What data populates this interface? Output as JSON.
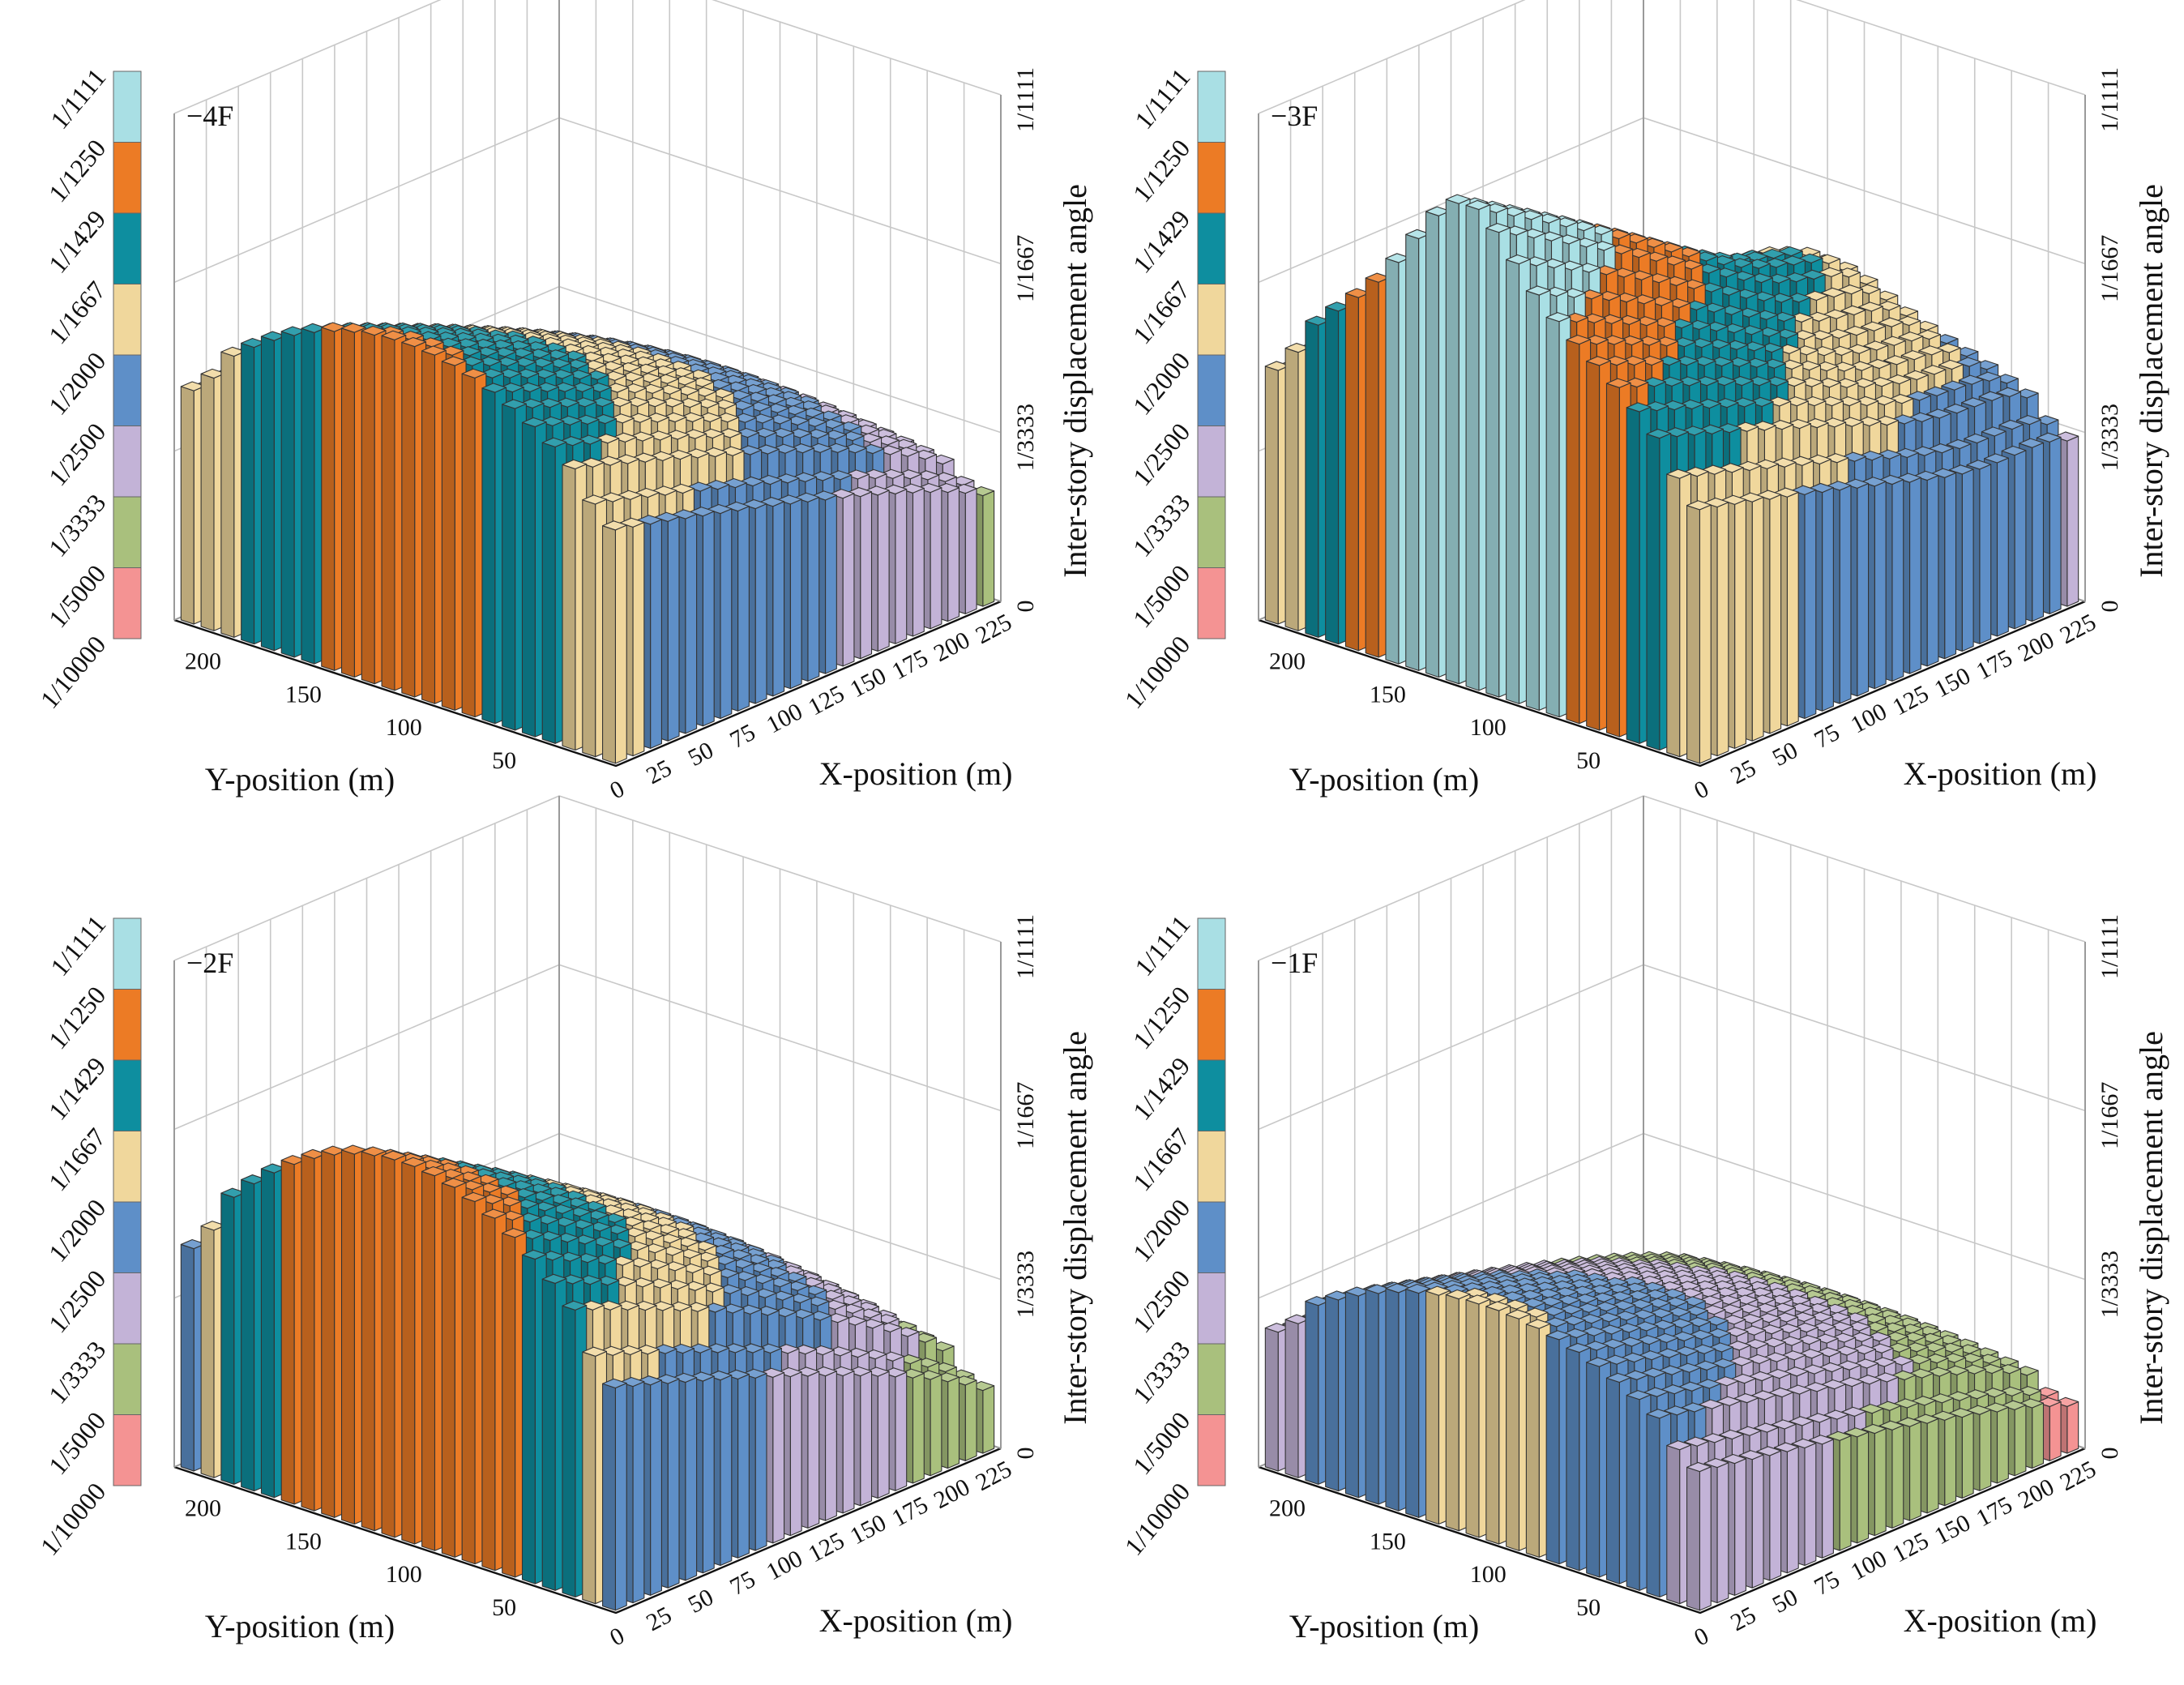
{
  "colors": {
    "bands": [
      "#f49393",
      "#a9c07d",
      "#c3b3d7",
      "#5e8fc8",
      "#f0d79c",
      "#0e8e9f",
      "#ec7b25",
      "#a9dfe4"
    ],
    "edge": "#333333",
    "grid": "#c8c8c8",
    "frame": "#9a9a9a"
  },
  "chart_data": [
    {
      "type": "bar3d",
      "panel": "-4F",
      "title": "−4F",
      "xlabel": "X-position (m)",
      "ylabel": "Y-position (m)",
      "zlabel": "Inter-story displacement angle",
      "x_ticks": [
        "0",
        "25",
        "50",
        "75",
        "100",
        "125",
        "150",
        "175",
        "200",
        "225"
      ],
      "y_ticks": [
        "50",
        "100",
        "150",
        "200"
      ],
      "z_ticks": [
        "0",
        "1/3333",
        "1/1667",
        "1/1111"
      ],
      "xlim": [
        0,
        230
      ],
      "ylim": [
        0,
        220
      ],
      "zlim": [
        0,
        0.0009
      ],
      "legend_labels": [
        "1/10000",
        "1/5000",
        "1/3333",
        "1/2500",
        "1/2000",
        "1/1667",
        "1/1429",
        "1/1250",
        "1/1111"
      ],
      "legend_thresholds": [
        0.0001,
        0.0002,
        0.0003,
        0.0004,
        0.0005,
        0.0006,
        0.0007,
        0.0008,
        0.0009
      ],
      "field": {
        "grid_x": 22,
        "grid_y": 22,
        "x_max": 225,
        "y_max": 210,
        "model": "arch",
        "base": 0.0002,
        "a_x": 0.0004,
        "a_y": 3e-05,
        "edge_y": 2e-05,
        "mid_y": 0.5,
        "peak_x": 0.0,
        "r_x": 0,
        "peak_y": 0.0,
        "r_y": 0
      }
    },
    {
      "type": "bar3d",
      "panel": "-3F",
      "title": "−3F",
      "xlabel": "X-position (m)",
      "ylabel": "Y-position (m)",
      "zlabel": "Inter-story displacement angle",
      "x_ticks": [
        "0",
        "25",
        "50",
        "75",
        "100",
        "125",
        "150",
        "175",
        "200",
        "225"
      ],
      "y_ticks": [
        "50",
        "100",
        "150",
        "200"
      ],
      "z_ticks": [
        "0",
        "1/3333",
        "1/1667",
        "1/1111"
      ],
      "xlim": [
        0,
        230
      ],
      "ylim": [
        0,
        220
      ],
      "zlim": [
        0,
        0.0009
      ],
      "legend_labels": [
        "1/10000",
        "1/5000",
        "1/3333",
        "1/2500",
        "1/2000",
        "1/1667",
        "1/1429",
        "1/1250",
        "1/1111"
      ],
      "legend_thresholds": [
        0.0001,
        0.0002,
        0.0003,
        0.0004,
        0.0005,
        0.0006,
        0.0007,
        0.0008,
        0.0009
      ],
      "field": {
        "grid_x": 22,
        "grid_y": 22,
        "x_max": 225,
        "y_max": 210,
        "model": "saddle",
        "base": 0.00022,
        "a_x": 0.00042,
        "a_y": 8e-05,
        "edge_y": 2e-05,
        "mid_y": 0.5,
        "peak_x": 1.0,
        "r_x": 0.00012,
        "peak_y": 0.55,
        "r_y": 0.00015
      }
    },
    {
      "type": "bar3d",
      "panel": "-2F",
      "title": "−2F",
      "xlabel": "X-position (m)",
      "ylabel": "Y-position (m)",
      "zlabel": "Inter-story displacement angle",
      "x_ticks": [
        "0",
        "25",
        "50",
        "75",
        "100",
        "125",
        "150",
        "175",
        "200",
        "225"
      ],
      "y_ticks": [
        "50",
        "100",
        "150",
        "200"
      ],
      "z_ticks": [
        "0",
        "1/3333",
        "1/1667",
        "1/1111"
      ],
      "xlim": [
        0,
        230
      ],
      "ylim": [
        0,
        220
      ],
      "zlim": [
        0,
        0.0009
      ],
      "legend_labels": [
        "1/10000",
        "1/5000",
        "1/3333",
        "1/2500",
        "1/2000",
        "1/1667",
        "1/1429",
        "1/1250",
        "1/1111"
      ],
      "legend_thresholds": [
        0.0001,
        0.0002,
        0.0003,
        0.0004,
        0.0005,
        0.0006,
        0.0007,
        0.0008,
        0.0009
      ],
      "field": {
        "grid_x": 22,
        "grid_y": 22,
        "x_max": 225,
        "y_max": 210,
        "model": "arch",
        "base": 0.00012,
        "a_x": 0.00052,
        "a_y": 4e-05,
        "edge_y": 3e-05,
        "mid_y": 0.5,
        "peak_x": 0.0,
        "r_x": 0,
        "peak_y": 0.0,
        "r_y": 0
      }
    },
    {
      "type": "bar3d",
      "panel": "-1F",
      "title": "−1F",
      "xlabel": "X-position (m)",
      "ylabel": "Y-position (m)",
      "zlabel": "Inter-story displacement angle",
      "x_ticks": [
        "0",
        "25",
        "50",
        "75",
        "100",
        "125",
        "150",
        "175",
        "200",
        "225"
      ],
      "y_ticks": [
        "50",
        "100",
        "150",
        "200"
      ],
      "z_ticks": [
        "0",
        "1/3333",
        "1/1667",
        "1/1111"
      ],
      "xlim": [
        0,
        230
      ],
      "ylim": [
        0,
        220
      ],
      "zlim": [
        0,
        0.0009
      ],
      "legend_labels": [
        "1/10000",
        "1/5000",
        "1/3333",
        "1/2500",
        "1/2000",
        "1/1667",
        "1/1429",
        "1/1250",
        "1/1111"
      ],
      "legend_thresholds": [
        0.0001,
        0.0002,
        0.0003,
        0.0004,
        0.0005,
        0.0006,
        0.0007,
        0.0008,
        0.0009
      ],
      "field": {
        "grid_x": 22,
        "grid_y": 22,
        "x_max": 225,
        "y_max": 210,
        "model": "arch",
        "base": 9e-05,
        "a_x": 0.0003,
        "a_y": 3e-05,
        "edge_y": 2e-05,
        "mid_y": 0.5,
        "peak_x": 0.0,
        "r_x": 0,
        "peak_y": 0.0,
        "r_y": 0
      }
    }
  ]
}
